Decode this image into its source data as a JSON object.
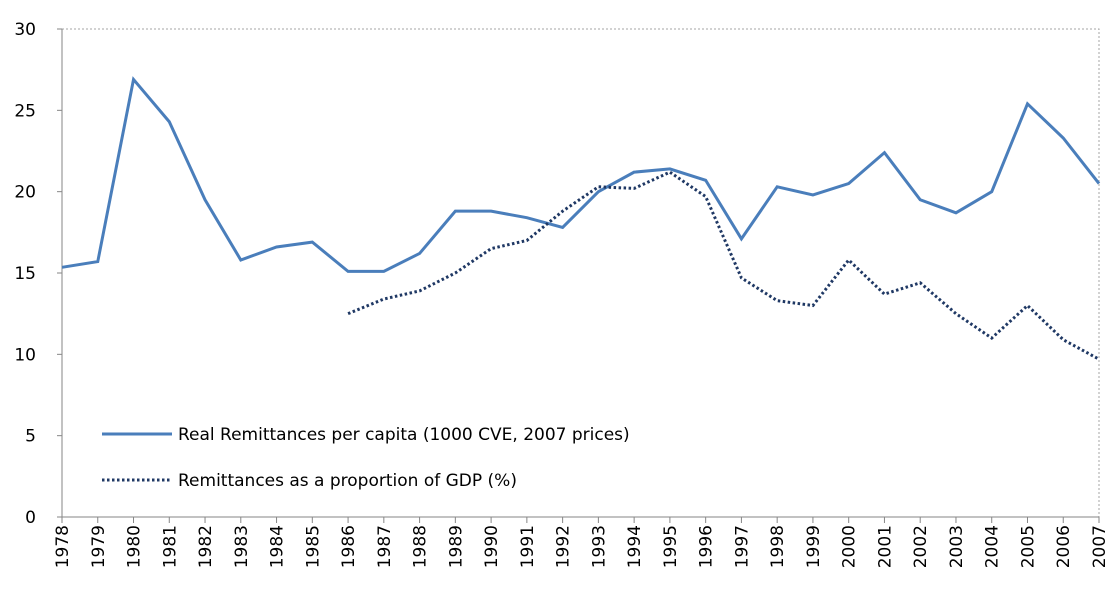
{
  "chart_data": {
    "type": "line",
    "categories": [
      "1978",
      "1979",
      "1980",
      "1981",
      "1982",
      "1983",
      "1984",
      "1985",
      "1986",
      "1987",
      "1988",
      "1989",
      "1990",
      "1991",
      "1992",
      "1993",
      "1994",
      "1995",
      "1996",
      "1997",
      "1998",
      "1999",
      "2000",
      "2001",
      "2002",
      "2003",
      "2004",
      "2005",
      "2006",
      "2007"
    ],
    "series": [
      {
        "name": "Real Remittances per capita (1000 CVE, 2007 prices)",
        "color": "#4a7ebb",
        "style": "solid",
        "values": [
          15.35,
          15.7,
          26.9,
          24.3,
          19.5,
          15.8,
          16.6,
          16.9,
          15.1,
          15.1,
          16.2,
          18.8,
          18.8,
          18.4,
          17.8,
          20.0,
          21.2,
          21.4,
          20.7,
          17.1,
          20.3,
          19.8,
          20.5,
          22.4,
          19.5,
          18.7,
          20.0,
          25.4,
          23.3,
          20.5
        ]
      },
      {
        "name": "Remittances as a proportion of GDP (%)",
        "color": "#1f3864",
        "style": "dotted",
        "values": [
          null,
          null,
          null,
          null,
          null,
          null,
          null,
          null,
          12.5,
          13.4,
          13.9,
          15.0,
          16.5,
          17.0,
          18.8,
          20.3,
          20.2,
          21.2,
          19.7,
          14.7,
          13.3,
          13.0,
          15.8,
          13.7,
          14.4,
          12.5,
          11.0,
          13.0,
          10.9,
          9.7
        ]
      }
    ],
    "ylim": [
      0,
      30
    ],
    "yticks": [
      0,
      5,
      10,
      15,
      20,
      25,
      30
    ],
    "grid": false,
    "legend": "lower left"
  }
}
